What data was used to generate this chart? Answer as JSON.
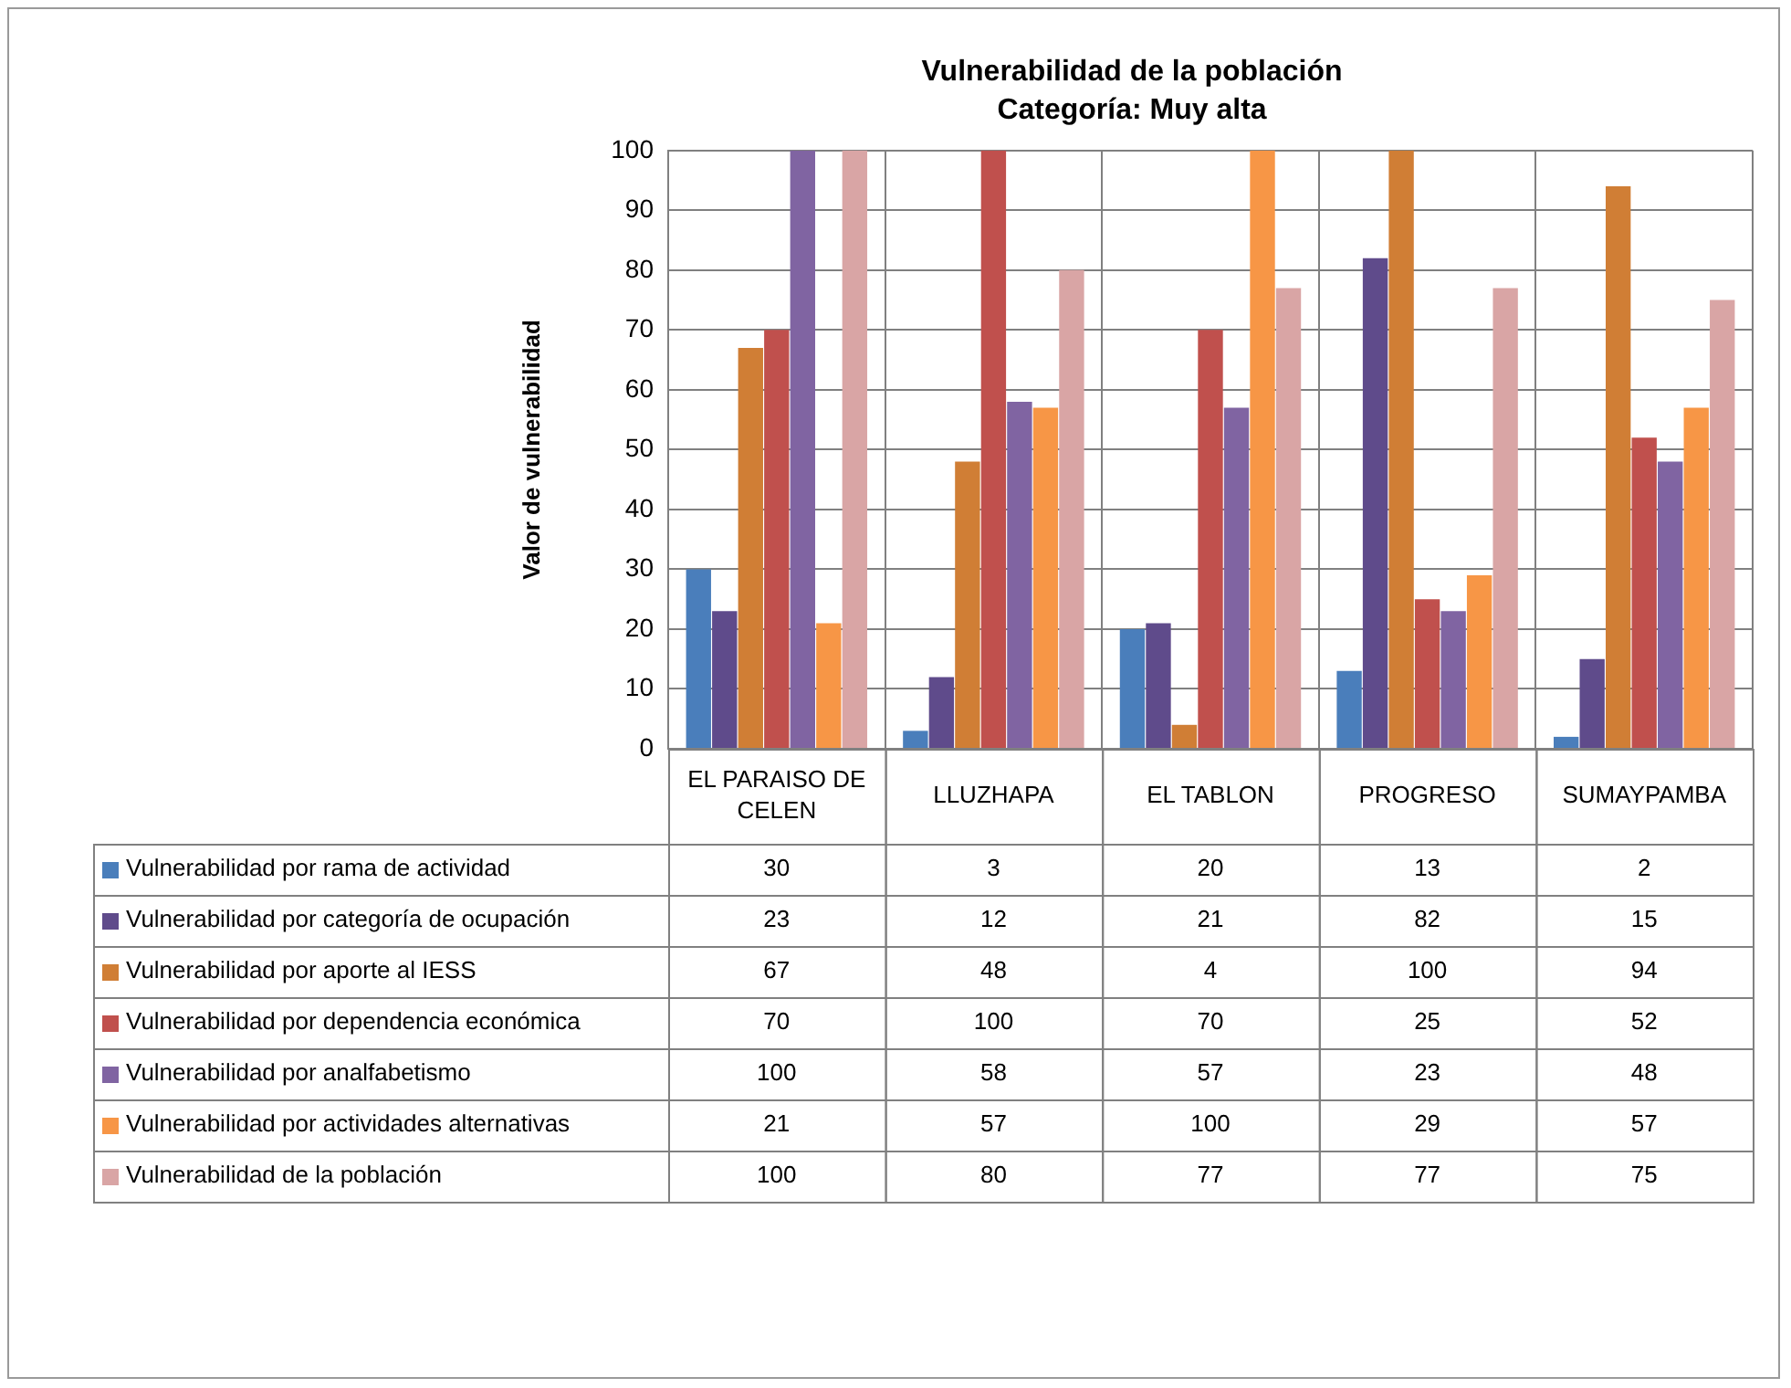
{
  "chart_data": {
    "type": "bar",
    "title": "Vulnerabilidad de la población",
    "subtitle": "Categoría: Muy alta",
    "ylabel": "Valor de vulnerabilidad",
    "categories": [
      "EL PARAISO DE CELEN",
      "LLUZHAPA",
      "EL TABLON",
      "PROGRESO",
      "SUMAYPAMBA"
    ],
    "series": [
      {
        "name": "Vulnerabilidad por rama de actividad",
        "color": "#4a7ebb",
        "values": [
          30,
          3,
          20,
          13,
          2
        ]
      },
      {
        "name": "Vulnerabilidad por categoría de ocupación",
        "color": "#5f4b8b",
        "values": [
          23,
          12,
          21,
          82,
          15
        ]
      },
      {
        "name": "Vulnerabilidad por aporte al IESS",
        "color": "#d07e35",
        "values": [
          67,
          48,
          4,
          100,
          94
        ]
      },
      {
        "name": "Vulnerabilidad por dependencia económica",
        "color": "#c0504d",
        "values": [
          70,
          100,
          70,
          25,
          52
        ]
      },
      {
        "name": "Vulnerabilidad por analfabetismo",
        "color": "#8064a2",
        "values": [
          100,
          58,
          57,
          23,
          48
        ]
      },
      {
        "name": "Vulnerabilidad por actividades alternativas",
        "color": "#f79646",
        "values": [
          21,
          57,
          100,
          29,
          57
        ]
      },
      {
        "name": "Vulnerabilidad de la población",
        "color": "#d9a5a5",
        "values": [
          100,
          80,
          77,
          77,
          75
        ]
      }
    ],
    "ylim": [
      0,
      100
    ],
    "yticks": [
      0,
      10,
      20,
      30,
      40,
      50,
      60,
      70,
      80,
      90,
      100
    ],
    "grid": true,
    "legend": "bottom",
    "data_labels": true
  }
}
